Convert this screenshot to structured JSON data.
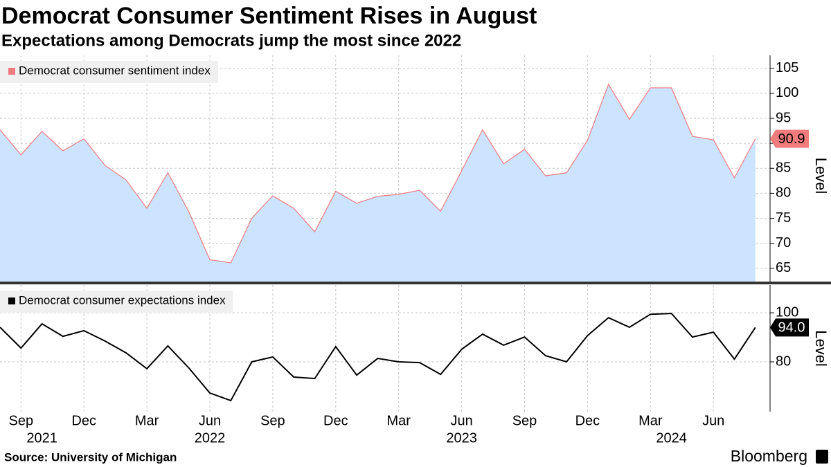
{
  "title": "Democrat Consumer Sentiment Rises in August",
  "subtitle": "Expectations among Democrats jump the most since 2022",
  "source": "Source: University of Michigan",
  "brand": "Bloomberg",
  "chart_data": [
    {
      "type": "area",
      "x": [
        "2021-08",
        "2021-09",
        "2021-10",
        "2021-11",
        "2021-12",
        "2022-01",
        "2022-02",
        "2022-03",
        "2022-04",
        "2022-05",
        "2022-06",
        "2022-07",
        "2022-08",
        "2022-09",
        "2022-10",
        "2022-11",
        "2022-12",
        "2023-01",
        "2023-02",
        "2023-03",
        "2023-04",
        "2023-05",
        "2023-06",
        "2023-07",
        "2023-08",
        "2023-09",
        "2023-10",
        "2023-11",
        "2023-12",
        "2024-01",
        "2024-02",
        "2024-03",
        "2024-04",
        "2024-05",
        "2024-06",
        "2024-07",
        "2024-08"
      ],
      "series": [
        {
          "name": "Democrat consumer sentiment index",
          "color": "#f07a80",
          "fill": "#cce4ff",
          "values": [
            92.7,
            87.7,
            92.4,
            88.5,
            90.9,
            85.6,
            82.7,
            77.0,
            84.1,
            76.3,
            66.7,
            66.1,
            75.0,
            79.5,
            77.0,
            72.3,
            80.4,
            78.0,
            79.4,
            79.8,
            80.6,
            76.4,
            84.5,
            92.7,
            85.9,
            88.8,
            83.5,
            84.1,
            90.6,
            101.8,
            94.8,
            101.1,
            101.1,
            91.4,
            90.7,
            83.1,
            90.9
          ]
        }
      ],
      "ylim": [
        62.2,
        107.6
      ],
      "yticks": [
        65,
        70,
        75,
        80,
        85,
        90,
        95,
        100,
        105
      ],
      "ylabel": "Level",
      "grid": true
    },
    {
      "type": "line",
      "x": [
        "2021-08",
        "2021-09",
        "2021-10",
        "2021-11",
        "2021-12",
        "2022-01",
        "2022-02",
        "2022-03",
        "2022-04",
        "2022-05",
        "2022-06",
        "2022-07",
        "2022-08",
        "2022-09",
        "2022-10",
        "2022-11",
        "2022-12",
        "2023-01",
        "2023-02",
        "2023-03",
        "2023-04",
        "2023-05",
        "2023-06",
        "2023-07",
        "2023-08",
        "2023-09",
        "2023-10",
        "2023-11",
        "2023-12",
        "2024-01",
        "2024-02",
        "2024-03",
        "2024-04",
        "2024-05",
        "2024-06",
        "2024-07",
        "2024-08"
      ],
      "series": [
        {
          "name": "Democrat consumer expectations index",
          "color": "#000000",
          "values": [
            94.1,
            85.6,
            95.5,
            90.4,
            92.7,
            88.5,
            83.7,
            77.2,
            86.5,
            77.5,
            67.3,
            64.2,
            80.0,
            82.0,
            73.8,
            73.2,
            86.2,
            74.6,
            81.4,
            80.0,
            79.7,
            74.9,
            85.1,
            91.3,
            86.8,
            90.1,
            82.5,
            80.0,
            90.7,
            98.0,
            94.1,
            99.4,
            99.7,
            90.1,
            92.1,
            81.1,
            94.0
          ],
          "value_labels": [
            null,
            null,
            null,
            null,
            null,
            null,
            null,
            null,
            null,
            null,
            null,
            null,
            null,
            null,
            null,
            null,
            null,
            null,
            null,
            null,
            null,
            null,
            null,
            null,
            null,
            null,
            null,
            null,
            null,
            null,
            null,
            null,
            null,
            null,
            null,
            null,
            "94.0"
          ]
        }
      ],
      "ylim": [
        59.7,
        111.3
      ],
      "yticks": [
        80,
        100
      ],
      "ylabel": "Level",
      "grid": true,
      "xticks": [
        {
          "value": "2021-09",
          "label": "Sep"
        },
        {
          "value": "2021-12",
          "label": "Dec"
        },
        {
          "value": "2022-03",
          "label": "Mar"
        },
        {
          "value": "2022-06",
          "label": "Jun"
        },
        {
          "value": "2022-09",
          "label": "Sep"
        },
        {
          "value": "2022-12",
          "label": "Dec"
        },
        {
          "value": "2023-03",
          "label": "Mar"
        },
        {
          "value": "2023-06",
          "label": "Jun"
        },
        {
          "value": "2023-09",
          "label": "Sep"
        },
        {
          "value": "2023-12",
          "label": "Dec"
        },
        {
          "value": "2024-03",
          "label": "Mar"
        },
        {
          "value": "2024-06",
          "label": "Jun"
        }
      ],
      "xyears": [
        {
          "value": "2021-10",
          "label": "2021"
        },
        {
          "value": "2022-06",
          "label": "2022"
        },
        {
          "value": "2023-06",
          "label": "2023"
        },
        {
          "value": "2024-04",
          "label": "2024"
        }
      ]
    }
  ]
}
